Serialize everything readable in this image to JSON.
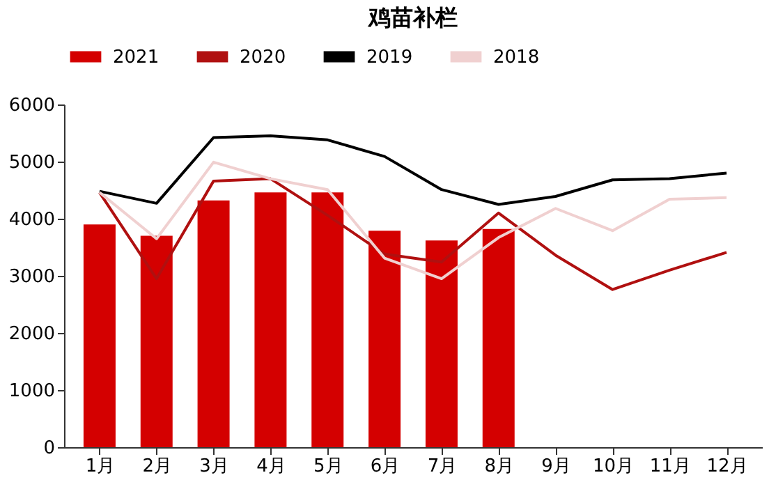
{
  "chart_data": {
    "type": "bar",
    "title": "鸡苗补栏",
    "categories": [
      "1月",
      "2月",
      "3月",
      "4月",
      "5月",
      "6月",
      "7月",
      "8月",
      "9月",
      "10月",
      "11月",
      "12月"
    ],
    "series": [
      {
        "name": "2021",
        "color": "#d40000",
        "values": [
          3900,
          3700,
          4320,
          4460,
          4460,
          3790,
          3620,
          3820,
          null,
          null,
          null,
          null
        ]
      },
      {
        "name": "2020",
        "type": "line",
        "color": "#b01010",
        "values": [
          4460,
          2950,
          4660,
          4700,
          4060,
          3380,
          3240,
          4100,
          3360,
          2760,
          3100,
          3410
        ]
      },
      {
        "name": "2019",
        "type": "line",
        "color": "#000000",
        "values": [
          4480,
          4270,
          5420,
          5450,
          5380,
          5090,
          4510,
          4250,
          4390,
          4680,
          4700,
          4800
        ]
      },
      {
        "name": "2018",
        "type": "line",
        "color": "#f0d0d0",
        "values": [
          4460,
          3650,
          4990,
          4700,
          4510,
          3310,
          2950,
          3670,
          4180,
          3790,
          4340,
          4370
        ]
      }
    ],
    "ylim": [
      0,
      6000
    ],
    "yticks": [
      0,
      1000,
      2000,
      3000,
      4000,
      5000,
      6000
    ],
    "grid": false,
    "legend": "top",
    "marker": "none",
    "line_style": "solid"
  }
}
